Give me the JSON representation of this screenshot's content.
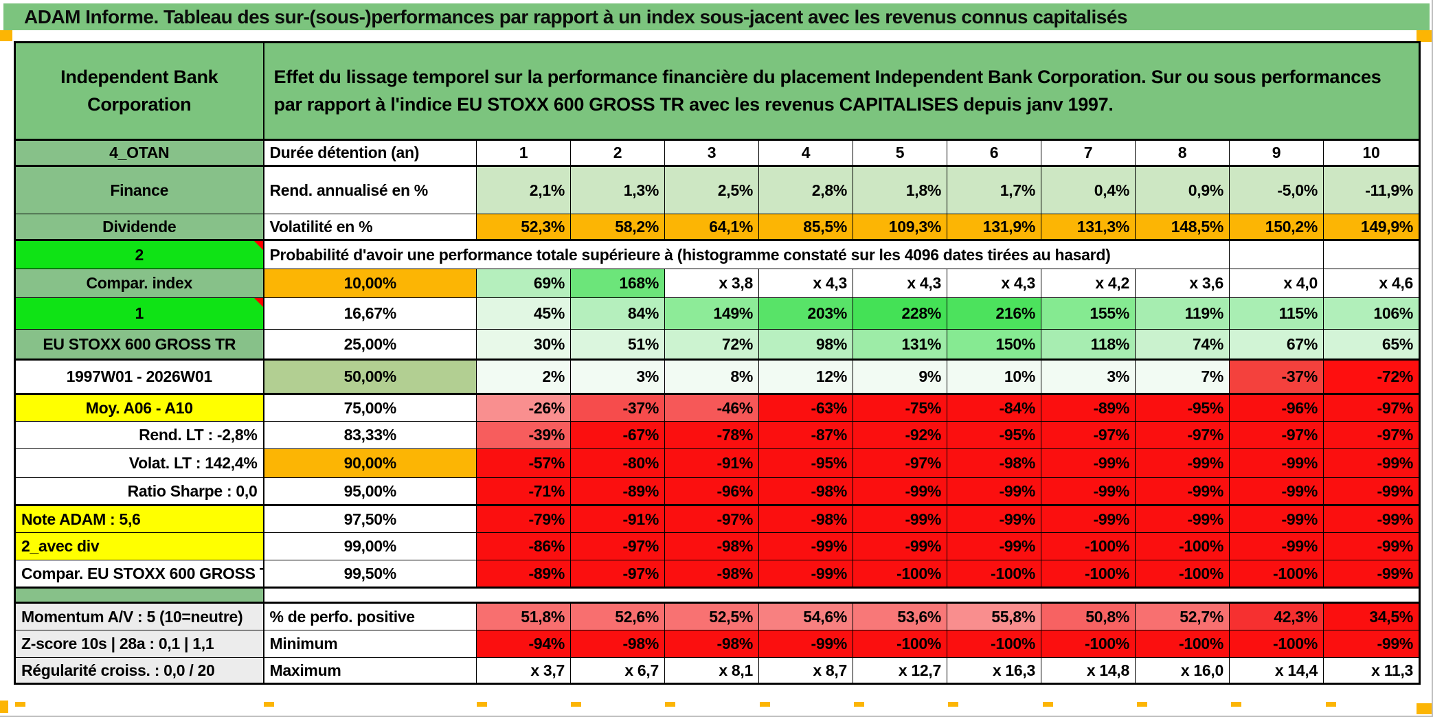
{
  "title": "ADAM Informe. Tableau des sur-(sous-)performances par rapport à un index sous-jacent avec les revenus connus capitalisés",
  "header": {
    "entity": "Independent Bank Corporation",
    "description": "Effet du lissage temporel sur la performance financière du placement Independent Bank Corporation. Sur ou sous performances par rapport à l'indice EU STOXX 600 GROSS TR avec les revenus CAPITALISES depuis janv 1997."
  },
  "colors": {
    "header_green": "#7cc47e",
    "label_green": "#87c189",
    "bright_green": "#0fe315",
    "orange": "#fcb504",
    "yellow": "#ffff00",
    "full_red": "#fb0f0f",
    "label_gray": "#ececec",
    "red_text": "#fe0505"
  },
  "table": {
    "rows": [
      {
        "a": {
          "t": "4_OTAN",
          "cls": "sage center"
        },
        "b": {
          "t": "Durée détention (an)",
          "cls": "left"
        },
        "vcls": "center hdr",
        "bg": "#ffffff",
        "values": [
          "1",
          "2",
          "3",
          "4",
          "5",
          "6",
          "7",
          "8",
          "9",
          "10"
        ],
        "row_class": "thick"
      },
      {
        "a": {
          "t": "Finance",
          "cls": "sage center"
        },
        "b": {
          "t": "Rend. annualisé en %",
          "cls": "left"
        },
        "vcls": "right",
        "bg": "#cde7c3",
        "values": [
          "2,1%",
          "1,3%",
          "2,5%",
          "2,8%",
          "1,8%",
          "1,7%",
          "0,4%",
          "0,9%",
          "-5,0%",
          "-11,9%"
        ]
      },
      {
        "a": {
          "t": "Dividende",
          "cls": "sage center"
        },
        "b": {
          "t": "Volatilité en %",
          "cls": "left"
        },
        "vcls": "right",
        "bg": "#fcb504",
        "values": [
          "52,3%",
          "58,2%",
          "64,1%",
          "85,5%",
          "109,3%",
          "131,9%",
          "131,3%",
          "148,5%",
          "150,2%",
          "149,9%"
        ],
        "row_class": "thick"
      },
      {
        "a": {
          "t": "2",
          "cls": "lime center",
          "flag": true
        },
        "span": {
          "t": "Probabilité d'avoir une performance totale supérieure à (histogramme constaté sur les 4096 dates tirées au hasard)",
          "cols": 9,
          "cls": "left spanleft"
        },
        "tail": [
          "",
          ""
        ]
      },
      {
        "a": {
          "t": "Compar. index",
          "cls": "sage center"
        },
        "b": {
          "t": "10,00%",
          "cls": "center orange"
        },
        "vcls": "right",
        "bgs": [
          "#b5efbd",
          "#6ce57a",
          "#ffffff",
          "#ffffff",
          "#ffffff",
          "#ffffff",
          "#ffffff",
          "#ffffff",
          "#ffffff",
          "#ffffff"
        ],
        "values": [
          "69%",
          "168%",
          "x 3,8",
          "x 4,3",
          "x 4,3",
          "x 4,3",
          "x 4,2",
          "x 3,6",
          "x 4,0",
          "x 4,6"
        ]
      },
      {
        "a": {
          "t": "1",
          "cls": "lime center",
          "flag": true
        },
        "b": {
          "t": "16,67%",
          "cls": "center"
        },
        "vcls": "right",
        "bgs": [
          "#e1f7e3",
          "#b5efbd",
          "#8deb98",
          "#58e368",
          "#44e156",
          "#4ce25d",
          "#85ea91",
          "#a6edb0",
          "#a9eeb3",
          "#b1efba"
        ],
        "values": [
          "45%",
          "84%",
          "149%",
          "203%",
          "228%",
          "216%",
          "155%",
          "119%",
          "115%",
          "106%"
        ]
      },
      {
        "a": {
          "t": "EU STOXX 600 GROSS TR",
          "cls": "sage center small"
        },
        "b": {
          "t": "25,00%",
          "cls": "center"
        },
        "vcls": "right",
        "bgs": [
          "#e8f9e9",
          "#dbf6de",
          "#ccf3d0",
          "#b8f0c0",
          "#9deca7",
          "#86ea92",
          "#a7edb1",
          "#caf2ce",
          "#d1f4d5",
          "#d3f4d7"
        ],
        "values": [
          "30%",
          "51%",
          "72%",
          "98%",
          "131%",
          "150%",
          "118%",
          "74%",
          "67%",
          "65%"
        ],
        "row_class": "thick"
      },
      {
        "a": {
          "t": "1997W01 - 2026W01",
          "cls": "center redtext big"
        },
        "b": {
          "t": "50,00%",
          "cls": "center olive bigger"
        },
        "vcls": "right big",
        "bgs": [
          "#f2fbf3",
          "#f2fbf3",
          "#f2fbf3",
          "#f2fbf3",
          "#f2fbf3",
          "#f2fbf3",
          "#f2fbf3",
          "#f2fbf3",
          "#f4413d",
          "#fe0f0f"
        ],
        "values": [
          "2%",
          "3%",
          "8%",
          "12%",
          "9%",
          "10%",
          "3%",
          "7%",
          "-37%",
          "-72%"
        ],
        "row_class": "thick"
      },
      {
        "a": {
          "t": "Moy. A06 - A10",
          "cls": "yellow center"
        },
        "b": {
          "t": "75,00%",
          "cls": "center"
        },
        "vcls": "right",
        "bgs": [
          "#f98f8f",
          "#f64c4c",
          "#f65858",
          "#fb0f0f",
          "#fb0f0f",
          "#fb0f0f",
          "#fb0f0f",
          "#fb0f0f",
          "#fb0f0f",
          "#fb0f0f"
        ],
        "values": [
          "-26%",
          "-37%",
          "-46%",
          "-63%",
          "-75%",
          "-84%",
          "-89%",
          "-95%",
          "-96%",
          "-97%"
        ]
      },
      {
        "a": {
          "t": "Rend. LT :   -2,8%",
          "cls": "redtext rightlab"
        },
        "b": {
          "t": "83,33%",
          "cls": "center"
        },
        "vcls": "right",
        "bgs": [
          "#f75d5d",
          "#fb0f0f",
          "#fb0f0f",
          "#fb0f0f",
          "#fb0f0f",
          "#fb0f0f",
          "#fb0f0f",
          "#fb0f0f",
          "#fb0f0f",
          "#fb0f0f"
        ],
        "values": [
          "-39%",
          "-67%",
          "-78%",
          "-87%",
          "-92%",
          "-95%",
          "-97%",
          "-97%",
          "-97%",
          "-97%"
        ]
      },
      {
        "a": {
          "t": "Volat. LT :   142,4%",
          "cls": "redtext rightlab"
        },
        "b": {
          "t": "90,00%",
          "cls": "center orange"
        },
        "vcls": "right",
        "bg": "#fb0f0f",
        "values": [
          "-57%",
          "-80%",
          "-91%",
          "-95%",
          "-97%",
          "-98%",
          "-99%",
          "-99%",
          "-99%",
          "-99%"
        ]
      },
      {
        "a": {
          "t": "Ratio Sharpe :   0,0",
          "cls": "redtext rightlab"
        },
        "b": {
          "t": "95,00%",
          "cls": "center"
        },
        "vcls": "right",
        "bg": "#fb0f0f",
        "values": [
          "-71%",
          "-89%",
          "-96%",
          "-98%",
          "-99%",
          "-99%",
          "-99%",
          "-99%",
          "-99%",
          "-99%"
        ],
        "row_class": "thick"
      },
      {
        "a": {
          "t": "Note ADAM : 5,6",
          "cls": "yellow leftlab"
        },
        "b": {
          "t": "97,50%",
          "cls": "center"
        },
        "vcls": "right",
        "bg": "#fb0f0f",
        "values": [
          "-79%",
          "-91%",
          "-97%",
          "-98%",
          "-99%",
          "-99%",
          "-99%",
          "-99%",
          "-99%",
          "-99%"
        ]
      },
      {
        "a": {
          "t": "2_avec div",
          "cls": "yellow leftlab"
        },
        "b": {
          "t": "99,00%",
          "cls": "center"
        },
        "vcls": "right",
        "bg": "#fb0f0f",
        "values": [
          "-86%",
          "-97%",
          "-98%",
          "-99%",
          "-99%",
          "-99%",
          "-100%",
          "-100%",
          "-99%",
          "-99%"
        ]
      },
      {
        "a": {
          "t": "Compar. EU STOXX 600 GROSS TR",
          "cls": "center smalllab"
        },
        "b": {
          "t": "99,50%",
          "cls": "center"
        },
        "vcls": "right",
        "bg": "#fb0f0f",
        "values": [
          "-89%",
          "-97%",
          "-98%",
          "-99%",
          "-100%",
          "-100%",
          "-100%",
          "-100%",
          "-100%",
          "-99%"
        ],
        "row_class": "thick"
      },
      {
        "a": {
          "t": "",
          "cls": "sage"
        },
        "span": {
          "t": "",
          "cols": 11,
          "cls": ""
        },
        "tail": [],
        "row_class": "thick"
      },
      {
        "a": {
          "t": "Momentum A/V : 5 (10=neutre)",
          "cls": "gray leftlab"
        },
        "b": {
          "t": "% de perfo. positive",
          "cls": "left"
        },
        "vcls": "right",
        "bgs": [
          "#f86f6f",
          "#f86f6f",
          "#f87272",
          "#f88080",
          "#f87878",
          "#f98e8e",
          "#f76262",
          "#f87070",
          "#f63030",
          "#fb0f0f"
        ],
        "values": [
          "51,8%",
          "52,6%",
          "52,5%",
          "54,6%",
          "53,6%",
          "55,8%",
          "50,8%",
          "52,7%",
          "42,3%",
          "34,5%"
        ]
      },
      {
        "a": {
          "t": "Z-score 10s | 28a : 0,1 | 1,1",
          "cls": "gray leftlab"
        },
        "b": {
          "t": "Minimum",
          "cls": "left"
        },
        "vcls": "right",
        "bg": "#fb0f0f",
        "values": [
          "-94%",
          "-98%",
          "-98%",
          "-99%",
          "-100%",
          "-100%",
          "-100%",
          "-100%",
          "-100%",
          "-99%"
        ]
      },
      {
        "a": {
          "t": "Régularité croiss. : 0,0 / 20",
          "cls": "gray leftlab"
        },
        "b": {
          "t": "Maximum",
          "cls": "left"
        },
        "vcls": "right",
        "bg": "#ffffff",
        "values": [
          "x 3,7",
          "x 6,7",
          "x 8,1",
          "x 8,7",
          "x 12,7",
          "x 16,3",
          "x 14,8",
          "x 16,0",
          "x 14,4",
          "x 11,3"
        ]
      }
    ]
  }
}
